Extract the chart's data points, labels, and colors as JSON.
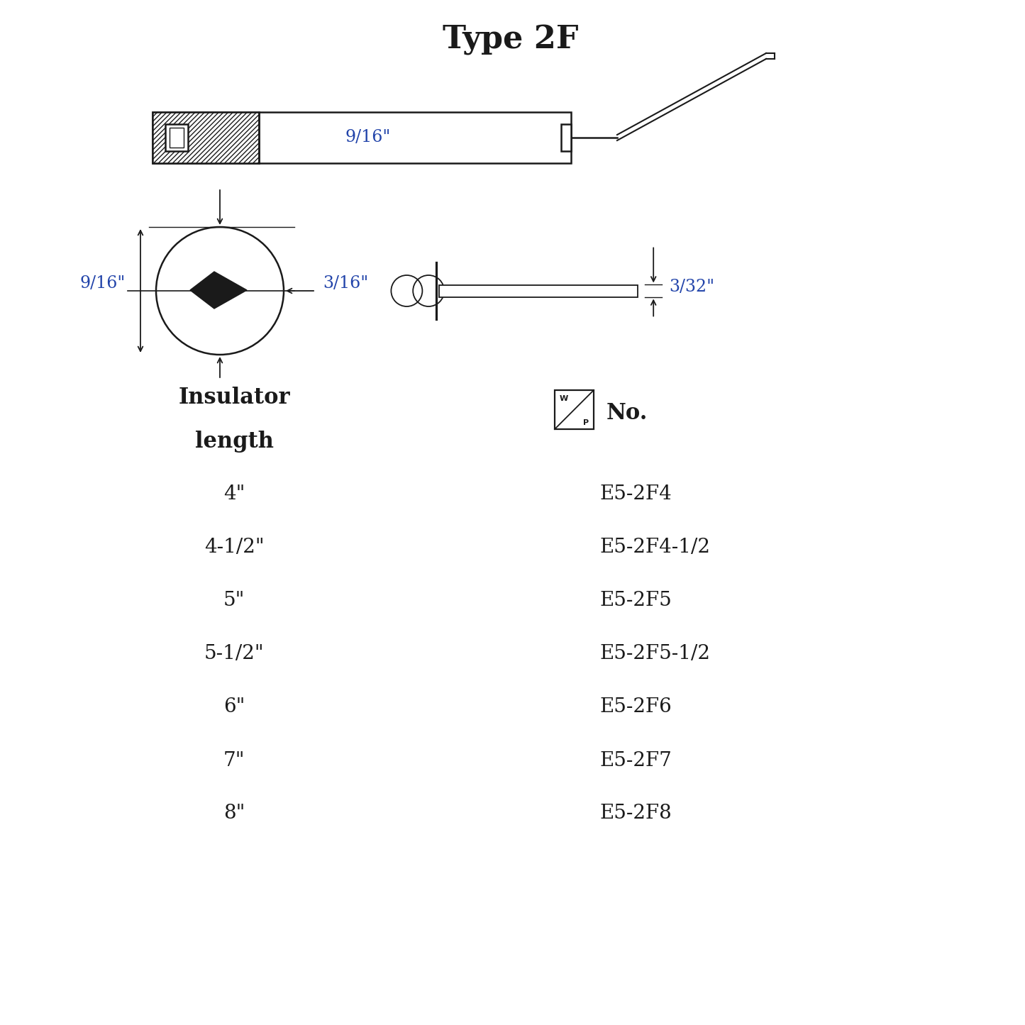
{
  "title": "Type 2F",
  "title_fontsize": 32,
  "text_color": "#222222",
  "blue_text_color": "#2244aa",
  "background_color": "#ffffff",
  "insulator_label_line1": "Insulator",
  "insulator_label_line2": "length",
  "wp_label": "No.",
  "lengths": [
    "4\"",
    "4-1/2\"",
    "5\"",
    "5-1/2\"",
    "6\"",
    "7\"",
    "8\""
  ],
  "part_numbers": [
    "E5-2F4",
    "E5-2F4-1/2",
    "E5-2F5",
    "E5-2F5-1/2",
    "E5-2F6",
    "E5-2F7",
    "E5-2F8"
  ],
  "dim_9_16_top": "9/16\"",
  "dim_9_16_left": "9/16\"",
  "dim_3_16": "3/16\"",
  "dim_3_32": "3/32\""
}
